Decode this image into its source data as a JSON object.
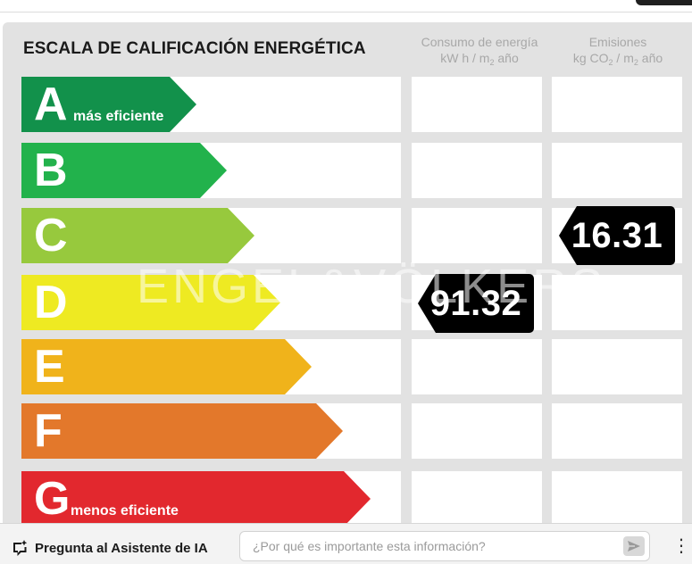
{
  "header": {
    "title": "ESCALA DE CALIFICACIÓN ENERGÉTICA",
    "consumption_line1": "Consumo de energía",
    "consumption_line2_pre": "kW h / m",
    "consumption_line2_sub": "2",
    "consumption_line2_post": " año",
    "emissions_line1": "Emisiones",
    "emissions_line2_pre": "kg CO",
    "emissions_line2_sub1": "2",
    "emissions_line2_mid": " / m",
    "emissions_line2_sub2": "2",
    "emissions_line2_post": " año"
  },
  "ratings": [
    {
      "letter": "A",
      "label": "más eficiente",
      "color": "#12914b"
    },
    {
      "letter": "B",
      "label": "",
      "color": "#22b24c"
    },
    {
      "letter": "C",
      "label": "",
      "color": "#97c93d"
    },
    {
      "letter": "D",
      "label": "",
      "color": "#eeea22"
    },
    {
      "letter": "E",
      "label": "",
      "color": "#f0b31b"
    },
    {
      "letter": "F",
      "label": "",
      "color": "#e3782b"
    },
    {
      "letter": "G",
      "label": "menos eficiente",
      "color": "#e2282e"
    }
  ],
  "consumption": {
    "value": "91.32",
    "rating": "D"
  },
  "emissions": {
    "value": "16.31",
    "rating": "C"
  },
  "watermark": "ENGEL&VÖLKERS",
  "footer": {
    "ai_label": "Pregunta al Asistente de IA",
    "placeholder": "¿Por qué es importante esta información?",
    "more": "⋮"
  }
}
